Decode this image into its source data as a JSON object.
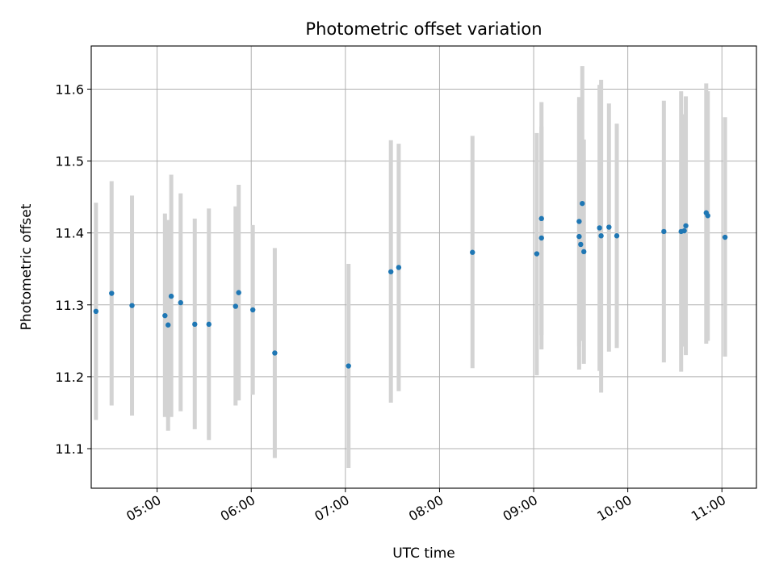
{
  "chart_data": {
    "type": "scatter",
    "title": "Photometric offset variation",
    "xlabel": "UTC time",
    "ylabel": "Photometric offset",
    "xlim": [
      "04:18",
      "11:22"
    ],
    "ylim": [
      11.045,
      11.66
    ],
    "x_ticks": [
      "05:00",
      "06:00",
      "07:00",
      "08:00",
      "09:00",
      "10:00",
      "11:00"
    ],
    "y_ticks": [
      "11.1",
      "11.2",
      "11.3",
      "11.4",
      "11.5",
      "11.6"
    ],
    "grid": true,
    "point_color": "#1f77b4",
    "errorbar_color": "#d3d3d3",
    "series": [
      {
        "points": [
          {
            "x": "04:21",
            "y": 11.291,
            "lo": 11.14,
            "hi": 11.442
          },
          {
            "x": "04:31",
            "y": 11.316,
            "lo": 11.16,
            "hi": 11.472
          },
          {
            "x": "04:44",
            "y": 11.299,
            "lo": 11.146,
            "hi": 11.452
          },
          {
            "x": "05:05",
            "y": 11.285,
            "lo": 11.144,
            "hi": 11.427
          },
          {
            "x": "05:07",
            "y": 11.272,
            "lo": 11.125,
            "hi": 11.418
          },
          {
            "x": "05:09",
            "y": 11.312,
            "lo": 11.144,
            "hi": 11.481
          },
          {
            "x": "05:15",
            "y": 11.303,
            "lo": 11.152,
            "hi": 11.455
          },
          {
            "x": "05:24",
            "y": 11.273,
            "lo": 11.127,
            "hi": 11.42
          },
          {
            "x": "05:33",
            "y": 11.273,
            "lo": 11.112,
            "hi": 11.434
          },
          {
            "x": "05:50",
            "y": 11.298,
            "lo": 11.16,
            "hi": 11.437
          },
          {
            "x": "05:52",
            "y": 11.317,
            "lo": 11.167,
            "hi": 11.467
          },
          {
            "x": "06:01",
            "y": 11.293,
            "lo": 11.175,
            "hi": 11.411
          },
          {
            "x": "06:15",
            "y": 11.233,
            "lo": 11.087,
            "hi": 11.379
          },
          {
            "x": "07:02",
            "y": 11.215,
            "lo": 11.073,
            "hi": 11.357
          },
          {
            "x": "07:29",
            "y": 11.346,
            "lo": 11.164,
            "hi": 11.529
          },
          {
            "x": "07:34",
            "y": 11.352,
            "lo": 11.18,
            "hi": 11.524
          },
          {
            "x": "08:21",
            "y": 11.373,
            "lo": 11.212,
            "hi": 11.535
          },
          {
            "x": "09:02",
            "y": 11.371,
            "lo": 11.202,
            "hi": 11.539
          },
          {
            "x": "09:05",
            "y": 11.42,
            "lo": 11.258,
            "hi": 11.582
          },
          {
            "x": "09:05",
            "y": 11.393,
            "lo": 11.238,
            "hi": 11.548
          },
          {
            "x": "09:29",
            "y": 11.416,
            "lo": 11.242,
            "hi": 11.589
          },
          {
            "x": "09:29",
            "y": 11.395,
            "lo": 11.21,
            "hi": 11.58
          },
          {
            "x": "09:30",
            "y": 11.384,
            "lo": 11.25,
            "hi": 11.518
          },
          {
            "x": "09:31",
            "y": 11.441,
            "lo": 11.25,
            "hi": 11.632
          },
          {
            "x": "09:32",
            "y": 11.374,
            "lo": 11.218,
            "hi": 11.53
          },
          {
            "x": "09:42",
            "y": 11.407,
            "lo": 11.208,
            "hi": 11.606
          },
          {
            "x": "09:43",
            "y": 11.396,
            "lo": 11.178,
            "hi": 11.613
          },
          {
            "x": "09:48",
            "y": 11.408,
            "lo": 11.235,
            "hi": 11.58
          },
          {
            "x": "09:53",
            "y": 11.396,
            "lo": 11.24,
            "hi": 11.552
          },
          {
            "x": "10:23",
            "y": 11.402,
            "lo": 11.22,
            "hi": 11.584
          },
          {
            "x": "10:34",
            "y": 11.402,
            "lo": 11.207,
            "hi": 11.597
          },
          {
            "x": "10:36",
            "y": 11.403,
            "lo": 11.242,
            "hi": 11.565
          },
          {
            "x": "10:37",
            "y": 11.41,
            "lo": 11.23,
            "hi": 11.59
          },
          {
            "x": "10:50",
            "y": 11.428,
            "lo": 11.246,
            "hi": 11.608
          },
          {
            "x": "10:51",
            "y": 11.424,
            "lo": 11.25,
            "hi": 11.597
          },
          {
            "x": "11:02",
            "y": 11.394,
            "lo": 11.228,
            "hi": 11.561
          }
        ]
      }
    ]
  }
}
